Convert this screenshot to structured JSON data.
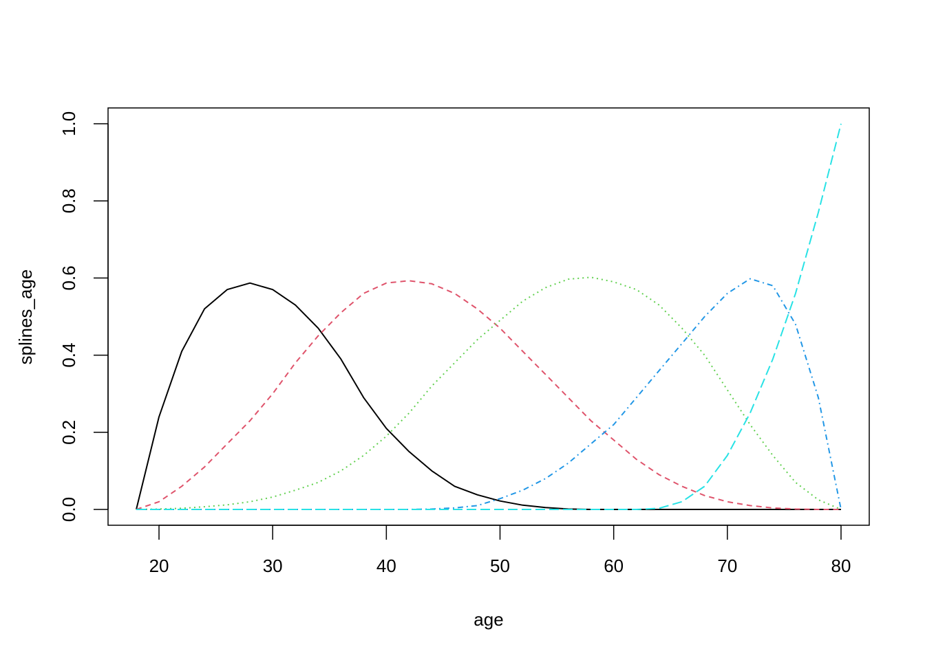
{
  "chart_data": {
    "type": "line",
    "title": "",
    "xlabel": "age",
    "ylabel": "splines_age",
    "xlim": [
      18,
      80
    ],
    "ylim": [
      0,
      1
    ],
    "x_ticks": [
      20,
      30,
      40,
      50,
      60,
      70,
      80
    ],
    "x_tick_labels": [
      "20",
      "30",
      "40",
      "50",
      "60",
      "70",
      "80"
    ],
    "y_ticks": [
      0,
      0.2,
      0.4,
      0.6,
      0.8,
      1.0
    ],
    "y_tick_labels": [
      "0.0",
      "0.2",
      "0.4",
      "0.6",
      "0.8",
      "1.0"
    ],
    "grid": false,
    "x": [
      18,
      20,
      22,
      24,
      26,
      28,
      30,
      32,
      34,
      36,
      38,
      40,
      42,
      44,
      46,
      48,
      50,
      52,
      54,
      56,
      58,
      60,
      62,
      64,
      66,
      68,
      70,
      72,
      74,
      76,
      78,
      80
    ],
    "series": [
      {
        "color": "#000000",
        "line_style": "solid",
        "values": [
          0.0,
          0.24,
          0.41,
          0.52,
          0.57,
          0.587,
          0.57,
          0.53,
          0.47,
          0.39,
          0.29,
          0.21,
          0.15,
          0.1,
          0.06,
          0.038,
          0.022,
          0.011,
          0.005,
          0.001,
          0.0,
          0.0,
          0.0,
          0.0,
          0.0,
          0.0,
          0.0,
          0.0,
          0.0,
          0.0,
          0.0,
          0.0
        ]
      },
      {
        "color": "#DF536B",
        "line_style": "dashed",
        "values": [
          0.0,
          0.02,
          0.06,
          0.11,
          0.17,
          0.23,
          0.3,
          0.38,
          0.45,
          0.51,
          0.56,
          0.587,
          0.593,
          0.585,
          0.56,
          0.52,
          0.47,
          0.41,
          0.35,
          0.29,
          0.23,
          0.18,
          0.13,
          0.09,
          0.06,
          0.036,
          0.02,
          0.01,
          0.004,
          0.001,
          0.0,
          0.0
        ]
      },
      {
        "color": "#61D04F",
        "line_style": "dotted",
        "values": [
          0.0,
          0.001,
          0.003,
          0.007,
          0.012,
          0.02,
          0.032,
          0.05,
          0.07,
          0.1,
          0.14,
          0.19,
          0.25,
          0.32,
          0.38,
          0.44,
          0.49,
          0.54,
          0.575,
          0.597,
          0.602,
          0.59,
          0.57,
          0.53,
          0.47,
          0.4,
          0.31,
          0.22,
          0.14,
          0.07,
          0.025,
          0.0
        ]
      },
      {
        "color": "#2297E6",
        "line_style": "dotdash",
        "values": [
          0.0,
          0.0,
          0.0,
          0.0,
          0.0,
          0.0,
          0.0,
          0.0,
          0.0,
          0.0,
          0.0,
          0.0,
          0.0,
          0.001,
          0.004,
          0.01,
          0.028,
          0.05,
          0.08,
          0.12,
          0.17,
          0.22,
          0.29,
          0.36,
          0.43,
          0.5,
          0.56,
          0.598,
          0.58,
          0.48,
          0.29,
          0.0
        ]
      },
      {
        "color": "#28E2E5",
        "line_style": "longdash",
        "values": [
          0.0,
          0.0,
          0.0,
          0.0,
          0.0,
          0.0,
          0.0,
          0.0,
          0.0,
          0.0,
          0.0,
          0.0,
          0.0,
          0.0,
          0.0,
          0.0,
          0.0,
          0.0,
          0.0,
          0.0,
          0.0,
          0.0,
          0.0,
          0.003,
          0.02,
          0.06,
          0.14,
          0.25,
          0.39,
          0.56,
          0.77,
          1.0
        ]
      }
    ]
  }
}
